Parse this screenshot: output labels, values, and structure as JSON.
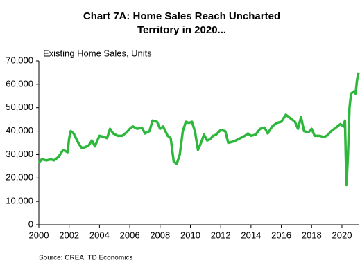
{
  "chart_data": {
    "type": "line",
    "title": [
      "Chart 7A:  Home Sales Reach Uncharted",
      "Territory in 2020..."
    ],
    "y_label": "Existing Home Sales, Units",
    "source": "Source:  CREA,  TD Economics",
    "color": "#2db83d",
    "x": [
      2000.0,
      2000.2,
      2000.5,
      2000.8,
      2001.0,
      2001.3,
      2001.6,
      2001.9,
      2002.0,
      2002.1,
      2002.3,
      2002.6,
      2002.8,
      2003.0,
      2003.3,
      2003.5,
      2003.7,
      2004.0,
      2004.3,
      2004.5,
      2004.7,
      2004.9,
      2005.2,
      2005.5,
      2005.8,
      2006.0,
      2006.2,
      2006.5,
      2006.8,
      2007.0,
      2007.3,
      2007.5,
      2007.8,
      2008.0,
      2008.2,
      2008.5,
      2008.7,
      2008.9,
      2009.1,
      2009.3,
      2009.5,
      2009.7,
      2009.9,
      2010.1,
      2010.3,
      2010.5,
      2010.7,
      2010.9,
      2011.1,
      2011.3,
      2011.5,
      2011.7,
      2012.0,
      2012.3,
      2012.5,
      2012.8,
      2013.0,
      2013.3,
      2013.6,
      2013.8,
      2014.0,
      2014.3,
      2014.6,
      2014.9,
      2015.1,
      2015.4,
      2015.7,
      2016.0,
      2016.3,
      2016.6,
      2016.9,
      2017.1,
      2017.3,
      2017.5,
      2017.8,
      2018.0,
      2018.2,
      2018.5,
      2018.8,
      2019.0,
      2019.3,
      2019.6,
      2019.9,
      2020.1,
      2020.2,
      2020.25,
      2020.3,
      2020.4,
      2020.5,
      2020.6,
      2020.8,
      2020.9,
      2021.0,
      2021.1
    ],
    "values": [
      26500,
      28000,
      27500,
      28000,
      27500,
      29000,
      32000,
      31000,
      37000,
      40000,
      39000,
      35000,
      33000,
      33000,
      34000,
      36000,
      33500,
      38000,
      37500,
      37000,
      41000,
      39000,
      38000,
      38000,
      39500,
      41000,
      42000,
      41000,
      41500,
      39000,
      40000,
      44500,
      44000,
      41000,
      42000,
      38000,
      37000,
      27000,
      26000,
      30000,
      40000,
      44000,
      43500,
      44000,
      40000,
      32000,
      35000,
      38500,
      36000,
      36500,
      38000,
      38500,
      40500,
      40000,
      35000,
      35500,
      36000,
      37000,
      38000,
      39000,
      38000,
      38500,
      41000,
      41500,
      39000,
      42000,
      43500,
      44000,
      47000,
      45500,
      44000,
      41000,
      46000,
      40000,
      39500,
      41000,
      38000,
      38000,
      37500,
      38000,
      40000,
      41500,
      43000,
      42000,
      44500,
      30000,
      17000,
      30000,
      50000,
      56000,
      57000,
      56000,
      62000,
      65000
    ],
    "xlim": [
      2000,
      2021.1
    ],
    "xticks": [
      2000,
      2002,
      2004,
      2006,
      2008,
      2010,
      2012,
      2014,
      2016,
      2018,
      2020
    ],
    "ylim": [
      0,
      70000
    ],
    "yticks": [
      0,
      {
        "value": 10000,
        "label": "10,000"
      },
      {
        "value": 20000,
        "label": "20,000"
      },
      {
        "value": 30000,
        "label": "30,000"
      },
      {
        "value": 40000,
        "label": "40,000"
      },
      {
        "value": 50000,
        "label": "50,000"
      },
      {
        "value": 60000,
        "label": "60,000"
      },
      {
        "value": 70000,
        "label": "70,000"
      }
    ],
    "grid": false
  }
}
